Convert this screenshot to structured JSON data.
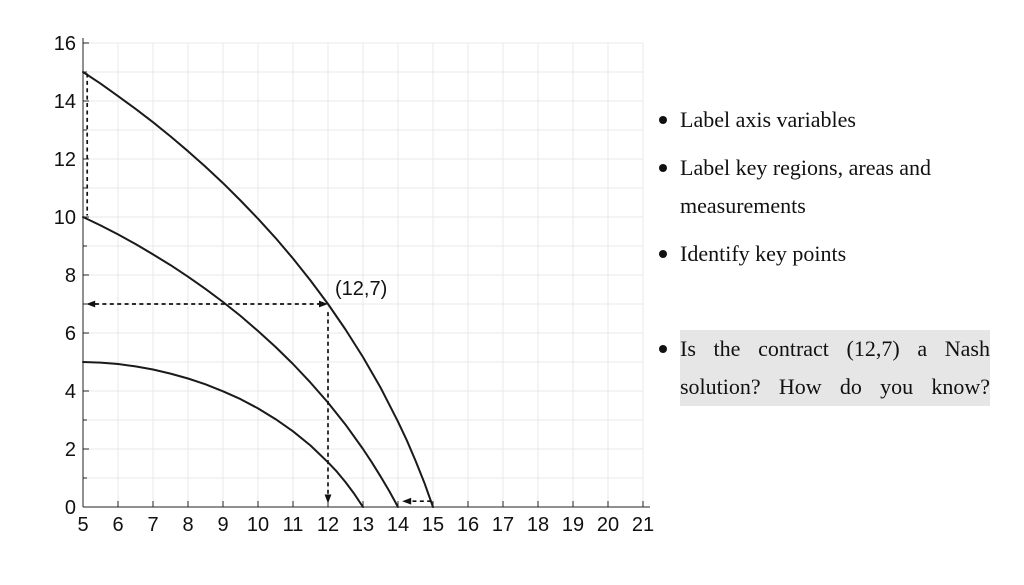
{
  "chart_data": {
    "type": "line",
    "title": "",
    "xlabel": "",
    "ylabel": "",
    "xlim": [
      5,
      21
    ],
    "ylim": [
      0,
      16
    ],
    "grid": true,
    "x_ticks": [
      5,
      6,
      7,
      8,
      9,
      10,
      11,
      12,
      13,
      14,
      15,
      16,
      17,
      18,
      19,
      20,
      21
    ],
    "y_ticks": [
      0,
      2,
      4,
      6,
      8,
      10,
      12,
      14,
      16
    ],
    "y_minor_ticks": [
      1,
      3,
      5,
      7,
      9,
      11,
      13,
      15
    ],
    "grid_x": [
      6,
      7,
      8,
      9,
      10,
      11,
      12,
      13,
      14,
      15,
      16,
      17,
      18,
      19,
      20,
      21
    ],
    "grid_y": [
      1,
      2,
      3,
      4,
      5,
      6,
      7,
      8,
      9,
      10,
      11,
      12,
      13,
      14,
      15,
      16
    ],
    "series": [
      {
        "name": "curve-top",
        "start": [
          5,
          15
        ],
        "end": [
          15,
          0
        ],
        "points": [
          [
            5,
            15
          ],
          [
            5.5,
            14.6
          ],
          [
            6,
            14.17
          ],
          [
            6.5,
            13.73
          ],
          [
            7,
            13.27
          ],
          [
            7.5,
            12.78
          ],
          [
            8,
            12.27
          ],
          [
            8.5,
            11.73
          ],
          [
            9,
            11.17
          ],
          [
            9.5,
            10.57
          ],
          [
            10,
            9.94
          ],
          [
            10.5,
            9.28
          ],
          [
            11,
            8.57
          ],
          [
            11.5,
            7.81
          ],
          [
            12,
            7
          ],
          [
            12.5,
            6.12
          ],
          [
            13,
            5.17
          ],
          [
            13.5,
            4.12
          ],
          [
            14,
            2.94
          ],
          [
            14.25,
            2.3
          ],
          [
            14.5,
            1.6
          ],
          [
            14.75,
            0.84
          ],
          [
            15,
            0
          ]
        ]
      },
      {
        "name": "curve-middle",
        "start": [
          5,
          10
        ],
        "end": [
          14,
          0
        ],
        "points": [
          [
            5,
            10
          ],
          [
            5.5,
            9.71
          ],
          [
            6,
            9.4
          ],
          [
            6.5,
            9.07
          ],
          [
            7,
            8.71
          ],
          [
            7.5,
            8.34
          ],
          [
            8,
            7.94
          ],
          [
            8.5,
            7.52
          ],
          [
            9,
            7.07
          ],
          [
            9.5,
            6.59
          ],
          [
            10,
            6.07
          ],
          [
            10.5,
            5.52
          ],
          [
            11,
            4.93
          ],
          [
            11.5,
            4.29
          ],
          [
            12,
            3.6
          ],
          [
            12.5,
            2.84
          ],
          [
            13,
            2
          ],
          [
            13.25,
            1.54
          ],
          [
            13.5,
            1.06
          ],
          [
            13.75,
            0.55
          ],
          [
            14,
            0
          ]
        ]
      },
      {
        "name": "curve-bottom",
        "start": [
          5,
          5
        ],
        "end": [
          13,
          0
        ],
        "points": [
          [
            5,
            5
          ],
          [
            5.5,
            4.98
          ],
          [
            6,
            4.93
          ],
          [
            6.5,
            4.85
          ],
          [
            7,
            4.74
          ],
          [
            7.5,
            4.6
          ],
          [
            8,
            4.43
          ],
          [
            8.5,
            4.23
          ],
          [
            9,
            3.99
          ],
          [
            9.5,
            3.72
          ],
          [
            10,
            3.4
          ],
          [
            10.5,
            3.03
          ],
          [
            11,
            2.61
          ],
          [
            11.5,
            2.12
          ],
          [
            12,
            1.54
          ],
          [
            12.25,
            1.22
          ],
          [
            12.5,
            0.86
          ],
          [
            12.75,
            0.45
          ],
          [
            13,
            0
          ]
        ]
      }
    ],
    "annotations": [
      {
        "kind": "dashed",
        "name": "vertical-span-x5",
        "from": [
          5.12,
          14.95
        ],
        "to": [
          5.12,
          10.05
        ],
        "arrow_from": false,
        "arrow_to": false
      },
      {
        "kind": "dashed",
        "name": "arrow-y-equals-7",
        "from": [
          12,
          7
        ],
        "to": [
          5.09,
          7
        ],
        "arrow_from": true,
        "arrow_to": true
      },
      {
        "kind": "dashed",
        "name": "arrow-x-equals-12",
        "from": [
          12,
          6.72
        ],
        "to": [
          12,
          0.12
        ],
        "arrow_from": false,
        "arrow_to": true
      },
      {
        "kind": "dashed",
        "name": "gap-14-to-15",
        "from": [
          14.95,
          0.2
        ],
        "to": [
          14.12,
          0.2
        ],
        "arrow_from": false,
        "arrow_to": true
      }
    ],
    "point_label": {
      "text": "(12,7)",
      "x": 12.2,
      "y": 7.55
    },
    "colors": {
      "curve": "#1a1a1a",
      "grid": "#e9e9e9",
      "axis": "#222222",
      "annotation": "#111111",
      "tick_text": "#111111"
    },
    "legend": null
  },
  "notes": {
    "highlight_color": "#e6e6e6",
    "bullets": [
      {
        "highlight": false,
        "lines": [
          "Label axis variables"
        ]
      },
      {
        "highlight": false,
        "lines": [
          "Label key regions, areas and",
          "measurements"
        ]
      },
      {
        "highlight": false,
        "lines": [
          "Identify key points"
        ]
      },
      {
        "highlight": true,
        "lines": [
          "Is the contract (12,7) a Nash",
          "solution?  How do you know?"
        ]
      }
    ]
  }
}
